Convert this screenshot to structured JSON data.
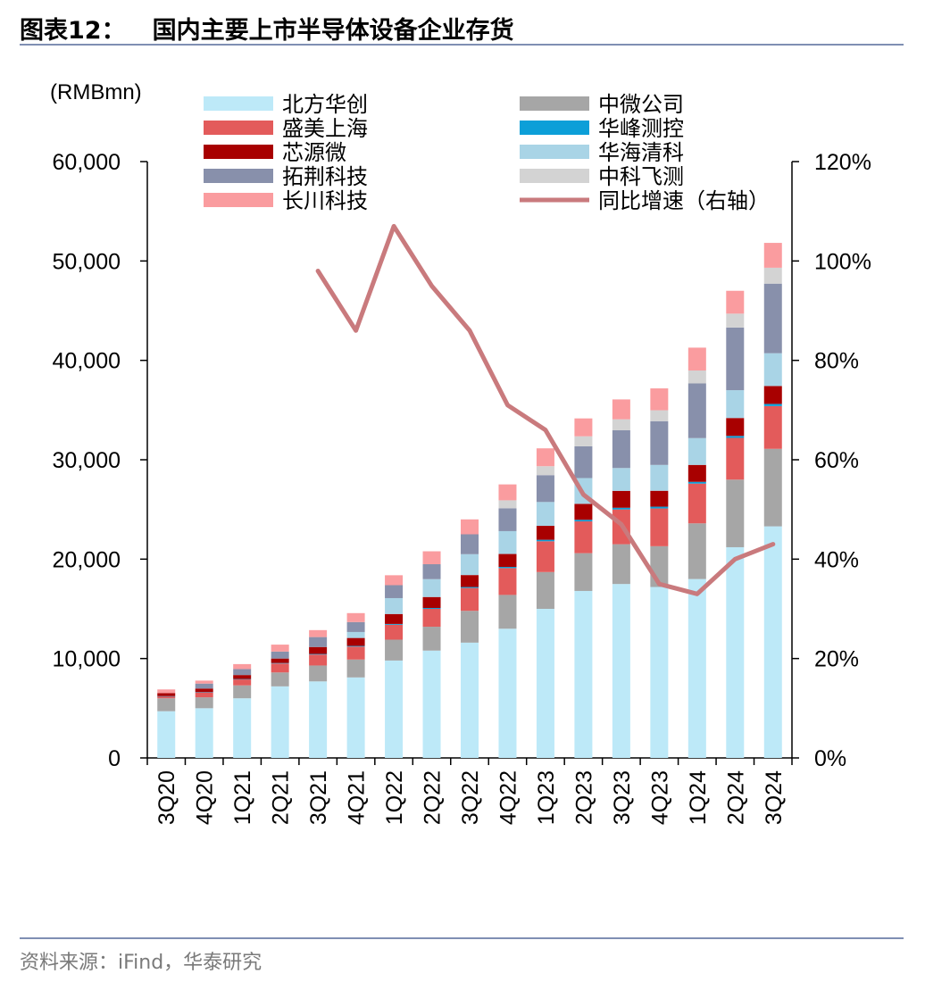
{
  "header": {
    "figure_label": "图表12：",
    "figure_title": "国内主要上市半导体设备企业存货"
  },
  "footer": {
    "source": "资料来源：iFind，华泰研究"
  },
  "chart_data": {
    "type": "bar",
    "stacked": true,
    "unit_label": "(RMBmn)",
    "categories": [
      "3Q20",
      "4Q20",
      "1Q21",
      "2Q21",
      "3Q21",
      "4Q21",
      "1Q22",
      "2Q22",
      "3Q22",
      "4Q22",
      "1Q23",
      "2Q23",
      "3Q23",
      "4Q23",
      "1Q24",
      "2Q24",
      "3Q24"
    ],
    "y_left": {
      "min": 0,
      "max": 60000,
      "ticks": [
        "0",
        "10,000",
        "20,000",
        "30,000",
        "40,000",
        "50,000",
        "60,000"
      ]
    },
    "y_right": {
      "min": 0,
      "max": 120,
      "ticks": [
        "0%",
        "20%",
        "40%",
        "60%",
        "80%",
        "100%",
        "120%"
      ]
    },
    "legend_position": "top",
    "series": [
      {
        "name": "北方华创",
        "color": "#bde9f8",
        "values": [
          4700,
          5000,
          6000,
          7200,
          7700,
          8100,
          9800,
          10800,
          11600,
          13000,
          15000,
          16800,
          17500,
          17200,
          18000,
          21200,
          23300
        ]
      },
      {
        "name": "中微公司",
        "color": "#a6a6a6",
        "values": [
          1300,
          1100,
          1300,
          1400,
          1600,
          1800,
          2100,
          2400,
          3200,
          3400,
          3700,
          3800,
          4000,
          4100,
          5600,
          6800,
          7800
        ]
      },
      {
        "name": "盛美上海",
        "color": "#e35b5b",
        "values": [
          200,
          500,
          600,
          900,
          1100,
          1300,
          1500,
          1800,
          2300,
          2700,
          3100,
          3200,
          3500,
          3800,
          4000,
          4200,
          4300
        ]
      },
      {
        "name": "华峰测控",
        "color": "#0c9fd8",
        "values": [
          20,
          30,
          40,
          50,
          60,
          70,
          80,
          90,
          100,
          120,
          150,
          160,
          170,
          180,
          180,
          200,
          220
        ]
      },
      {
        "name": "芯源微",
        "color": "#a80000",
        "values": [
          300,
          350,
          400,
          450,
          700,
          800,
          1000,
          1100,
          1200,
          1300,
          1400,
          1600,
          1700,
          1600,
          1700,
          1800,
          1800
        ]
      },
      {
        "name": "华海清科",
        "color": "#a9d4e6",
        "values": [
          0,
          0,
          0,
          0,
          0,
          600,
          1600,
          1800,
          2100,
          2300,
          2400,
          2600,
          2300,
          2600,
          2700,
          2800,
          3300
        ]
      },
      {
        "name": "拓荆科技",
        "color": "#8890ab",
        "values": [
          0,
          500,
          600,
          700,
          1000,
          1000,
          1300,
          1500,
          2000,
          2300,
          2700,
          3200,
          3800,
          4400,
          5500,
          6300,
          7000
        ]
      },
      {
        "name": "中科飞测",
        "color": "#d3d3d3",
        "values": [
          0,
          0,
          0,
          0,
          0,
          0,
          0,
          0,
          0,
          800,
          900,
          1000,
          1100,
          1100,
          1300,
          1400,
          1600
        ]
      },
      {
        "name": "长川科技",
        "color": "#fa9c9f",
        "values": [
          370,
          300,
          500,
          700,
          700,
          900,
          1000,
          1300,
          1500,
          1600,
          1800,
          1800,
          2000,
          2200,
          2300,
          2300,
          2500
        ]
      }
    ],
    "line_series": {
      "name": "同比增速（右轴）",
      "color": "#c97a7d",
      "axis": "right",
      "values": [
        null,
        null,
        null,
        null,
        98,
        86,
        107,
        95,
        86,
        71,
        66,
        53,
        47,
        35,
        33,
        40,
        43
      ]
    }
  }
}
